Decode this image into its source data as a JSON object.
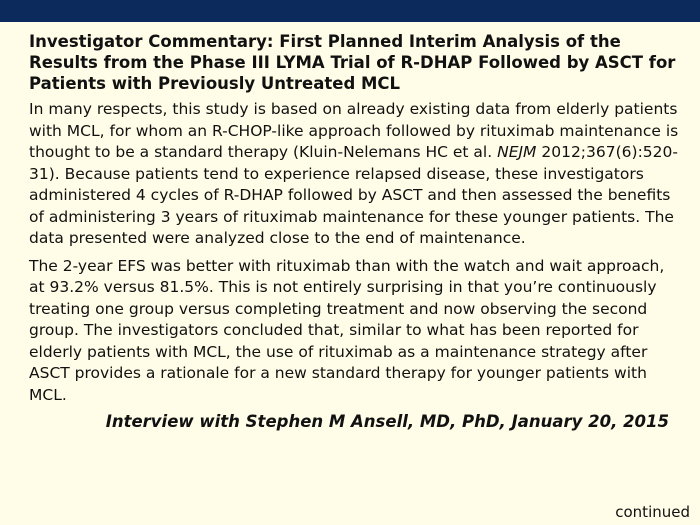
{
  "title": "Investigator Commentary: First Planned Interim Analysis of the Results from the Phase III LYMA Trial of R-DHAP Followed by ASCT for Patients with Previously Untreated MCL",
  "paragraph1": {
    "before": "In many respects, this study is based on already existing data from elderly patients with MCL, for whom an R-CHOP-like approach followed by rituximab maintenance is thought to be a standard therapy (Kluin-Nelemans HC et al. ",
    "journal": "NEJM",
    "after": " 2012;367(6):520-31). Because patients tend to experience relapsed disease, these investigators administered 4 cycles of R-DHAP followed by ASCT and then assessed the benefits of administering 3 years of rituximab maintenance for these younger patients. The data presented were analyzed close to the end of maintenance."
  },
  "paragraph2": "The 2-year EFS was better with rituximab than with the watch and wait approach, at 93.2% versus 81.5%. This is not entirely surprising in that you’re continuously treating one group versus completing treatment and now observing the second group. The investigators concluded that, similar to what has been reported for elderly patients with MCL, the use of rituximab as a maintenance strategy after ASCT provides a rationale for a new standard therapy for younger patients with MCL.",
  "credit": "Interview with Stephen M Ansell, MD, PhD, January 20, 2015",
  "footer": "continued",
  "colors": {
    "top_bar": "#0d2a5c",
    "background": "#fffde8"
  }
}
